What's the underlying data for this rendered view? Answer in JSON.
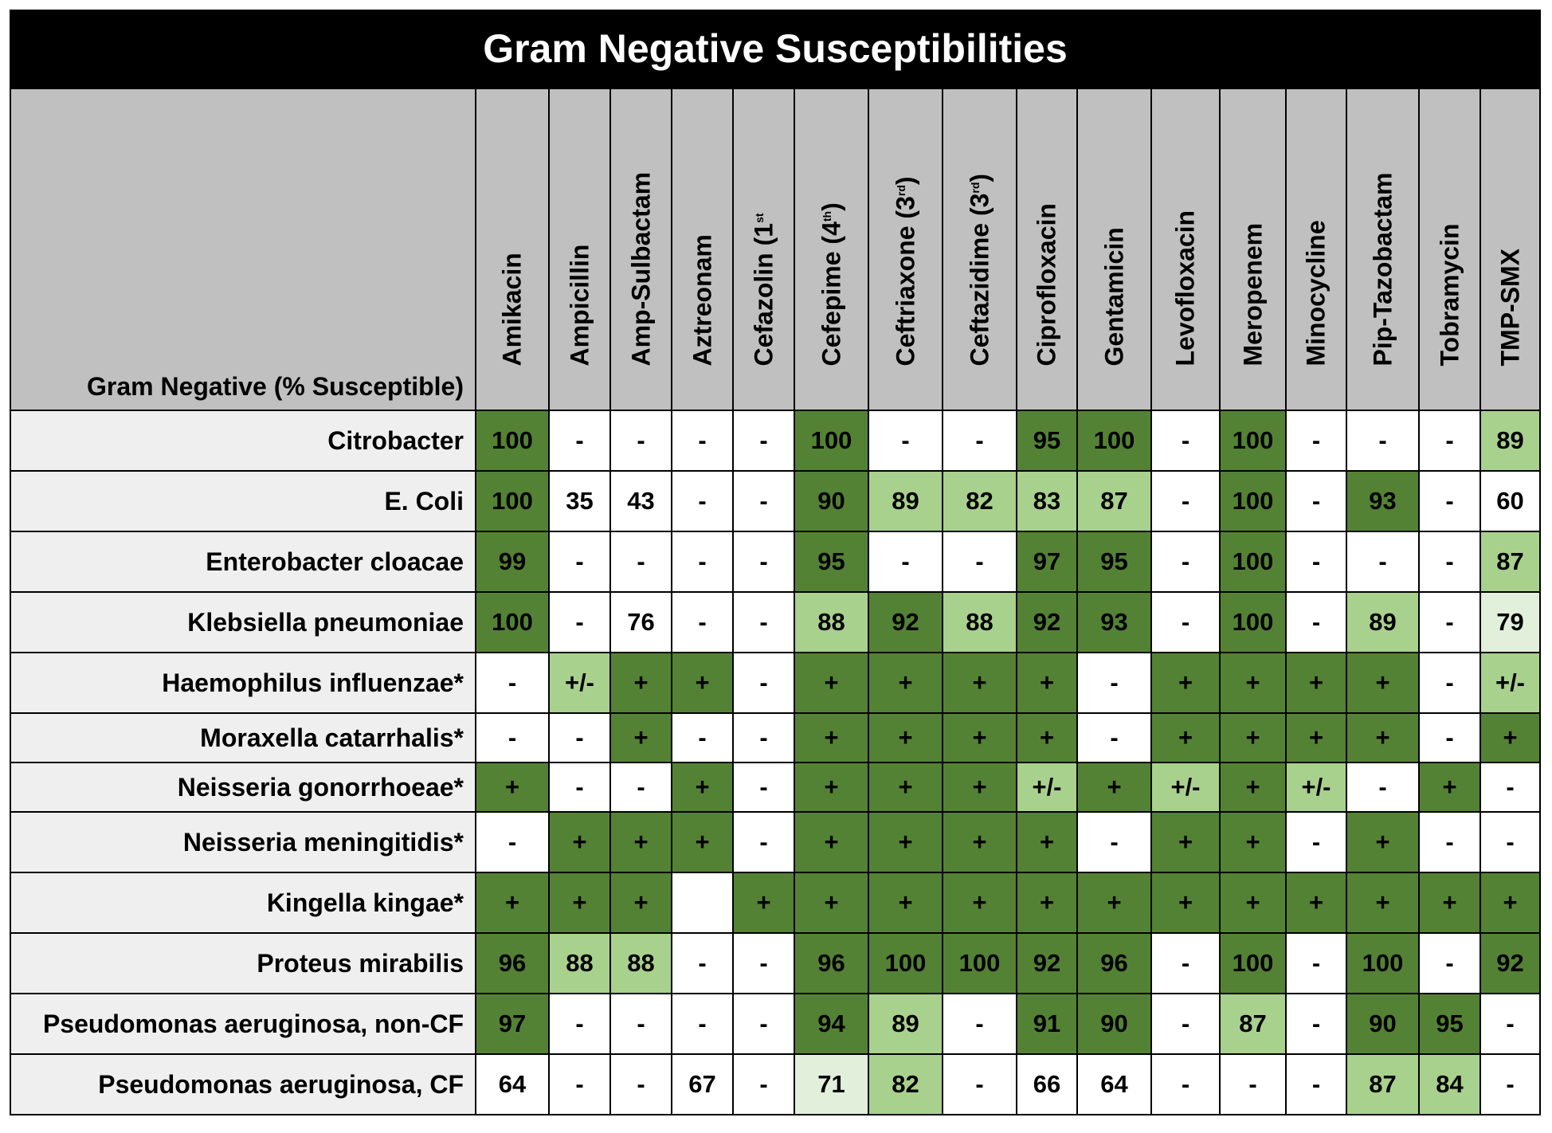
{
  "title": "Gram Negative Susceptibilities",
  "row_header_label": "Gram Negative (% Susceptible)",
  "colors": {
    "dark_green": "#548235",
    "light_green": "#a9d18e",
    "pale_green": "#e2efda",
    "white": "#ffffff",
    "header_gray": "#c0c0c0",
    "row_label_bg": "#efefef"
  },
  "legend_codes": {
    "d": "dark green",
    "l": "light green",
    "p": "pale green",
    "w": "white"
  },
  "antibiotics": [
    {
      "name": "Amikacin",
      "sup": ""
    },
    {
      "name": "Ampicillin",
      "sup": ""
    },
    {
      "name": "Amp-Sulbactam",
      "sup": ""
    },
    {
      "name": "Aztreonam",
      "sup": ""
    },
    {
      "name": "Cefazolin (1",
      "sup": "st"
    },
    {
      "name": "Cefepime (4",
      "sup": "th",
      "close": ")"
    },
    {
      "name": "Ceftriaxone (3",
      "sup": "rd",
      "close": ")"
    },
    {
      "name": "Ceftazidime (3",
      "sup": "rd",
      "close": ")"
    },
    {
      "name": "Ciprofloxacin",
      "sup": ""
    },
    {
      "name": "Gentamicin",
      "sup": ""
    },
    {
      "name": "Levofloxacin",
      "sup": ""
    },
    {
      "name": "Meropenem",
      "sup": ""
    },
    {
      "name": "Minocycline",
      "sup": ""
    },
    {
      "name": "Pip-Tazobactam",
      "sup": ""
    },
    {
      "name": "Tobramycin",
      "sup": ""
    },
    {
      "name": "TMP-SMX",
      "sup": ""
    }
  ],
  "rows": [
    {
      "organism": "Citrobacter",
      "values": [
        "100",
        "-",
        "-",
        "-",
        "-",
        "100",
        "-",
        "-",
        "95",
        "100",
        "-",
        "100",
        "-",
        "-",
        "-",
        "89"
      ],
      "colors": [
        "d",
        "w",
        "w",
        "w",
        "w",
        "d",
        "w",
        "w",
        "d",
        "d",
        "w",
        "d",
        "w",
        "w",
        "w",
        "l"
      ]
    },
    {
      "organism": "E. Coli",
      "values": [
        "100",
        "35",
        "43",
        "-",
        "-",
        "90",
        "89",
        "82",
        "83",
        "87",
        "-",
        "100",
        "-",
        "93",
        "-",
        "60"
      ],
      "colors": [
        "d",
        "w",
        "w",
        "w",
        "w",
        "d",
        "l",
        "l",
        "l",
        "l",
        "w",
        "d",
        "w",
        "d",
        "w",
        "w"
      ]
    },
    {
      "organism": "Enterobacter cloacae",
      "values": [
        "99",
        "-",
        "-",
        "-",
        "-",
        "95",
        "-",
        "-",
        "97",
        "95",
        "-",
        "100",
        "-",
        "-",
        "-",
        "87"
      ],
      "colors": [
        "d",
        "w",
        "w",
        "w",
        "w",
        "d",
        "w",
        "w",
        "d",
        "d",
        "w",
        "d",
        "w",
        "w",
        "w",
        "l"
      ]
    },
    {
      "organism": "Klebsiella pneumoniae",
      "values": [
        "100",
        "-",
        "76",
        "-",
        "-",
        "88",
        "92",
        "88",
        "92",
        "93",
        "-",
        "100",
        "-",
        "89",
        "-",
        "79"
      ],
      "colors": [
        "d",
        "w",
        "w",
        "w",
        "w",
        "l",
        "d",
        "l",
        "d",
        "d",
        "w",
        "d",
        "w",
        "l",
        "w",
        "p"
      ]
    },
    {
      "organism": "Haemophilus influenzae*",
      "values": [
        "-",
        "+/-",
        "+",
        "+",
        "-",
        "+",
        "+",
        "+",
        "+",
        "-",
        "+",
        "+",
        "+",
        "+",
        "-",
        "+/-"
      ],
      "colors": [
        "w",
        "l",
        "d",
        "d",
        "w",
        "d",
        "d",
        "d",
        "d",
        "w",
        "d",
        "d",
        "d",
        "d",
        "w",
        "l"
      ]
    },
    {
      "organism": "Moraxella catarrhalis*",
      "values": [
        "-",
        "-",
        "+",
        "-",
        "-",
        "+",
        "+",
        "+",
        "+",
        "-",
        "+",
        "+",
        "+",
        "+",
        "-",
        "+"
      ],
      "colors": [
        "w",
        "w",
        "d",
        "w",
        "w",
        "d",
        "d",
        "d",
        "d",
        "w",
        "d",
        "d",
        "d",
        "d",
        "w",
        "d"
      ]
    },
    {
      "organism": "Neisseria gonorrhoeae*",
      "values": [
        "+",
        "-",
        "-",
        "+",
        "-",
        "+",
        "+",
        "+",
        "+/-",
        "+",
        "+/-",
        "+",
        "+/-",
        "-",
        "+",
        "-"
      ],
      "colors": [
        "d",
        "w",
        "w",
        "d",
        "w",
        "d",
        "d",
        "d",
        "l",
        "d",
        "l",
        "d",
        "l",
        "w",
        "d",
        "w"
      ]
    },
    {
      "organism": "Neisseria meningitidis*",
      "values": [
        "-",
        "+",
        "+",
        "+",
        "-",
        "+",
        "+",
        "+",
        "+",
        "-",
        "+",
        "+",
        "-",
        "+",
        "-",
        "-"
      ],
      "colors": [
        "w",
        "d",
        "d",
        "d",
        "w",
        "d",
        "d",
        "d",
        "d",
        "w",
        "d",
        "d",
        "w",
        "d",
        "w",
        "w"
      ]
    },
    {
      "organism": "Kingella kingae*",
      "values": [
        "+",
        "+",
        "+",
        "",
        "+",
        "+",
        "+",
        "+",
        "+",
        "+",
        "+",
        "+",
        "+",
        "+",
        "+",
        "+"
      ],
      "colors": [
        "d",
        "d",
        "d",
        "w",
        "d",
        "d",
        "d",
        "d",
        "d",
        "d",
        "d",
        "d",
        "d",
        "d",
        "d",
        "d"
      ]
    },
    {
      "organism": "Proteus mirabilis",
      "values": [
        "96",
        "88",
        "88",
        "-",
        "-",
        "96",
        "100",
        "100",
        "92",
        "96",
        "-",
        "100",
        "-",
        "100",
        "-",
        "92"
      ],
      "colors": [
        "d",
        "l",
        "l",
        "w",
        "w",
        "d",
        "d",
        "d",
        "d",
        "d",
        "w",
        "d",
        "w",
        "d",
        "w",
        "d"
      ]
    },
    {
      "organism": "Pseudomonas aeruginosa, non-CF",
      "values": [
        "97",
        "-",
        "-",
        "-",
        "-",
        "94",
        "89",
        "-",
        "91",
        "90",
        "-",
        "87",
        "-",
        "90",
        "95",
        "-"
      ],
      "colors": [
        "d",
        "w",
        "w",
        "w",
        "w",
        "d",
        "l",
        "w",
        "d",
        "d",
        "w",
        "l",
        "w",
        "d",
        "d",
        "w"
      ]
    },
    {
      "organism": "Pseudomonas aeruginosa, CF",
      "values": [
        "64",
        "-",
        "-",
        "67",
        "-",
        "71",
        "82",
        "-",
        "66",
        "64",
        "-",
        "-",
        "-",
        "87",
        "84",
        "-"
      ],
      "colors": [
        "w",
        "w",
        "w",
        "w",
        "w",
        "p",
        "l",
        "w",
        "w",
        "w",
        "w",
        "w",
        "w",
        "l",
        "l",
        "w"
      ]
    }
  ]
}
